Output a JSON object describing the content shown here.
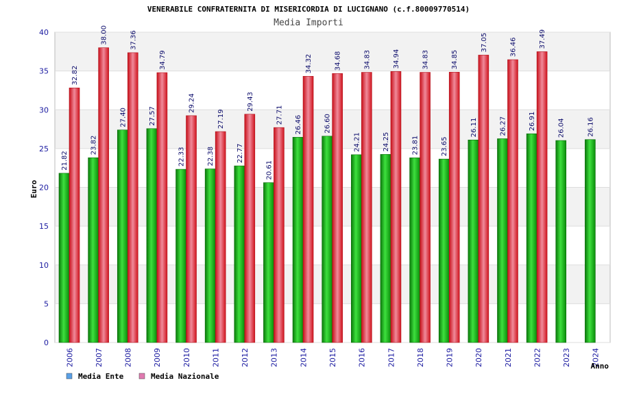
{
  "chart_data": {
    "type": "bar",
    "title": "VENERABILE CONFRATERNITA DI MISERICORDIA DI LUCIGNANO (c.f.80009770514)",
    "subtitle": "Media Importi",
    "xlabel": "Anno",
    "ylabel": "Euro",
    "ylim": [
      0,
      40
    ],
    "yticks": [
      "0",
      "5",
      "10",
      "15",
      "20",
      "25",
      "30",
      "35",
      "40"
    ],
    "grid": true,
    "legend_position": "bottom-left",
    "categories": [
      "2006",
      "2007",
      "2008",
      "2009",
      "2010",
      "2011",
      "2012",
      "2013",
      "2014",
      "2015",
      "2016",
      "2017",
      "2018",
      "2019",
      "2020",
      "2021",
      "2022",
      "2023",
      "2024"
    ],
    "series": [
      {
        "name": "Media Ente",
        "color": "#1fb51f",
        "legend_color": "#5aa0e6",
        "values": [
          21.82,
          23.82,
          27.4,
          27.57,
          22.33,
          22.38,
          22.77,
          20.61,
          26.46,
          26.6,
          24.21,
          24.25,
          23.81,
          23.65,
          26.11,
          26.27,
          26.91,
          26.04,
          26.16
        ],
        "labels": [
          "21.82",
          "23.82",
          "27.40",
          "27.57",
          "22.33",
          "22.38",
          "22.77",
          "20.61",
          "26.46",
          "26.60",
          "24.21",
          "24.25",
          "23.81",
          "23.65",
          "26.11",
          "26.27",
          "26.91",
          "26.04",
          "26.16"
        ]
      },
      {
        "name": "Media Nazionale",
        "color": "#e8202a",
        "legend_color": "#e07ab0",
        "values": [
          32.82,
          38.0,
          37.36,
          34.79,
          29.24,
          27.19,
          29.43,
          27.71,
          34.32,
          34.68,
          34.83,
          34.94,
          34.83,
          34.85,
          37.05,
          36.46,
          37.49,
          null,
          null
        ],
        "labels": [
          "32.82",
          "38.00",
          "37.36",
          "34.79",
          "29.24",
          "27.19",
          "29.43",
          "27.71",
          "34.32",
          "34.68",
          "34.83",
          "34.94",
          "34.83",
          "34.85",
          "37.05",
          "36.46",
          "37.49",
          null,
          null
        ]
      }
    ]
  }
}
